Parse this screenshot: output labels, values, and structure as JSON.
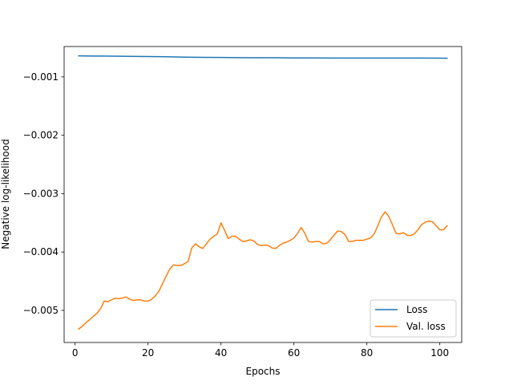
{
  "chart_data": {
    "type": "line",
    "title": "",
    "xlabel": "Epochs",
    "ylabel": "Negative log-likelihood",
    "xlim": [
      -3,
      106
    ],
    "ylim": [
      -0.00555,
      -0.00048
    ],
    "xticks": [
      0,
      20,
      40,
      60,
      80,
      100
    ],
    "xtick_labels": [
      "0",
      "20",
      "40",
      "60",
      "80",
      "100"
    ],
    "yticks": [
      -0.005,
      -0.004,
      -0.003,
      -0.002,
      -0.001
    ],
    "ytick_labels": [
      "−0.005",
      "−0.004",
      "−0.003",
      "−0.002",
      "−0.001"
    ],
    "grid": false,
    "legend_position": "lower-right",
    "series": [
      {
        "name": "Loss",
        "color": "#1f77b4",
        "x": [
          1,
          5,
          10,
          15,
          20,
          25,
          30,
          35,
          40,
          45,
          50,
          55,
          60,
          65,
          70,
          75,
          80,
          85,
          90,
          95,
          100,
          102
        ],
        "y": [
          -0.00064,
          -0.000643,
          -0.000645,
          -0.000648,
          -0.000652,
          -0.000655,
          -0.000662,
          -0.000665,
          -0.000668,
          -0.00067,
          -0.000673,
          -0.000673,
          -0.000675,
          -0.000676,
          -0.000677,
          -0.000677,
          -0.000678,
          -0.000677,
          -0.000678,
          -0.000678,
          -0.000679,
          -0.00068
        ]
      },
      {
        "name": "Val. loss",
        "color": "#ff7f0e",
        "x": [
          1,
          2,
          3,
          4,
          5,
          6,
          7,
          8,
          9,
          10,
          11,
          12,
          13,
          14,
          15,
          16,
          17,
          18,
          19,
          20,
          21,
          22,
          23,
          24,
          25,
          26,
          27,
          28,
          29,
          30,
          31,
          32,
          33,
          34,
          35,
          36,
          37,
          38,
          39,
          40,
          41,
          42,
          43,
          44,
          45,
          46,
          47,
          48,
          49,
          50,
          51,
          52,
          53,
          54,
          55,
          56,
          57,
          58,
          59,
          60,
          61,
          62,
          63,
          64,
          65,
          66,
          67,
          68,
          69,
          70,
          71,
          72,
          73,
          74,
          75,
          76,
          77,
          78,
          79,
          80,
          81,
          82,
          83,
          84,
          85,
          86,
          87,
          88,
          89,
          90,
          91,
          92,
          93,
          94,
          95,
          96,
          97,
          98,
          99,
          100,
          101,
          102
        ],
        "y": [
          -0.00532,
          -0.00527,
          -0.00521,
          -0.00516,
          -0.0051,
          -0.00505,
          -0.00497,
          -0.00484,
          -0.00485,
          -0.00482,
          -0.00479,
          -0.0048,
          -0.00479,
          -0.00477,
          -0.00481,
          -0.00483,
          -0.00482,
          -0.00482,
          -0.00484,
          -0.00484,
          -0.00481,
          -0.00475,
          -0.00467,
          -0.00454,
          -0.00441,
          -0.00429,
          -0.00422,
          -0.00423,
          -0.00423,
          -0.0042,
          -0.00416,
          -0.00393,
          -0.00386,
          -0.00391,
          -0.00394,
          -0.00386,
          -0.00378,
          -0.00373,
          -0.00369,
          -0.0035,
          -0.00363,
          -0.00377,
          -0.00373,
          -0.00373,
          -0.00378,
          -0.00382,
          -0.00381,
          -0.00379,
          -0.00381,
          -0.00387,
          -0.00389,
          -0.00388,
          -0.00389,
          -0.00393,
          -0.00394,
          -0.00389,
          -0.00385,
          -0.00383,
          -0.0038,
          -0.00376,
          -0.00368,
          -0.00358,
          -0.00368,
          -0.00382,
          -0.00383,
          -0.00382,
          -0.00382,
          -0.00386,
          -0.00385,
          -0.00379,
          -0.00371,
          -0.00364,
          -0.00365,
          -0.0037,
          -0.00382,
          -0.00382,
          -0.0038,
          -0.0038,
          -0.0038,
          -0.00378,
          -0.00376,
          -0.00369,
          -0.00355,
          -0.0034,
          -0.00331,
          -0.00339,
          -0.00353,
          -0.00368,
          -0.00369,
          -0.00367,
          -0.00371,
          -0.00372,
          -0.00369,
          -0.00362,
          -0.00353,
          -0.00349,
          -0.00347,
          -0.00348,
          -0.00355,
          -0.00362,
          -0.00362,
          -0.00355
        ]
      }
    ]
  }
}
